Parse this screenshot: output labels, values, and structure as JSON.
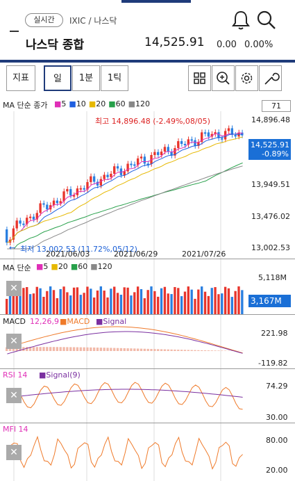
{
  "header": {
    "realtime_label": "실시간",
    "code_label": "IXIC / 나스닥",
    "name": "나스닥 종합",
    "price": "14,525.91",
    "change": "0.00",
    "change_rate": "0.00%",
    "icons": {
      "alert": "bell-icon",
      "search": "search-icon"
    }
  },
  "toolbar": {
    "indicator": "지표",
    "day": "일",
    "minute": "1분",
    "tick": "1틱",
    "icons": [
      "grid-icon",
      "zoom-icon",
      "gear-icon",
      "wrench-icon"
    ]
  },
  "price_panel": {
    "ma_label": "MA 단순 종가",
    "ma_periods": [
      "5",
      "10",
      "20",
      "60",
      "120"
    ],
    "ma_colors": [
      "#e02fb7",
      "#1f5fe0",
      "#e6b800",
      "#27a04a",
      "#888888"
    ],
    "count_box": "71",
    "axis": [
      "14,896.48",
      "13,949.51",
      "13,476.02",
      "13,002.53"
    ],
    "current_badge": [
      "14,525.91",
      "-0.89%"
    ],
    "high_label": "최고 14,896.48 (-2.49%,08/05)",
    "low_label": "최저 13,002.53 (11.72%,05/12)",
    "dates": [
      "2021/06/03",
      "2021/06/29",
      "2021/07/26"
    ],
    "colors": {
      "up": "#e8352c",
      "down": "#2a7fe0"
    }
  },
  "volume_panel": {
    "label": "MA 단순",
    "periods": [
      "5",
      "20",
      "60",
      "120"
    ],
    "axis_top": "5,118M",
    "badge": "3,167M"
  },
  "macd_panel": {
    "label": "MACD",
    "params": "12,26,9",
    "series": [
      "MACD",
      "Signal"
    ],
    "axis": [
      "221.98",
      "-119.82"
    ]
  },
  "rsi_panel": {
    "label": "RSI 14",
    "signal": "Signal(9)",
    "axis": [
      "74.29",
      "30.00"
    ]
  },
  "mfi_panel": {
    "label": "MFI 14",
    "axis": [
      "80.00",
      "20.00"
    ]
  }
}
